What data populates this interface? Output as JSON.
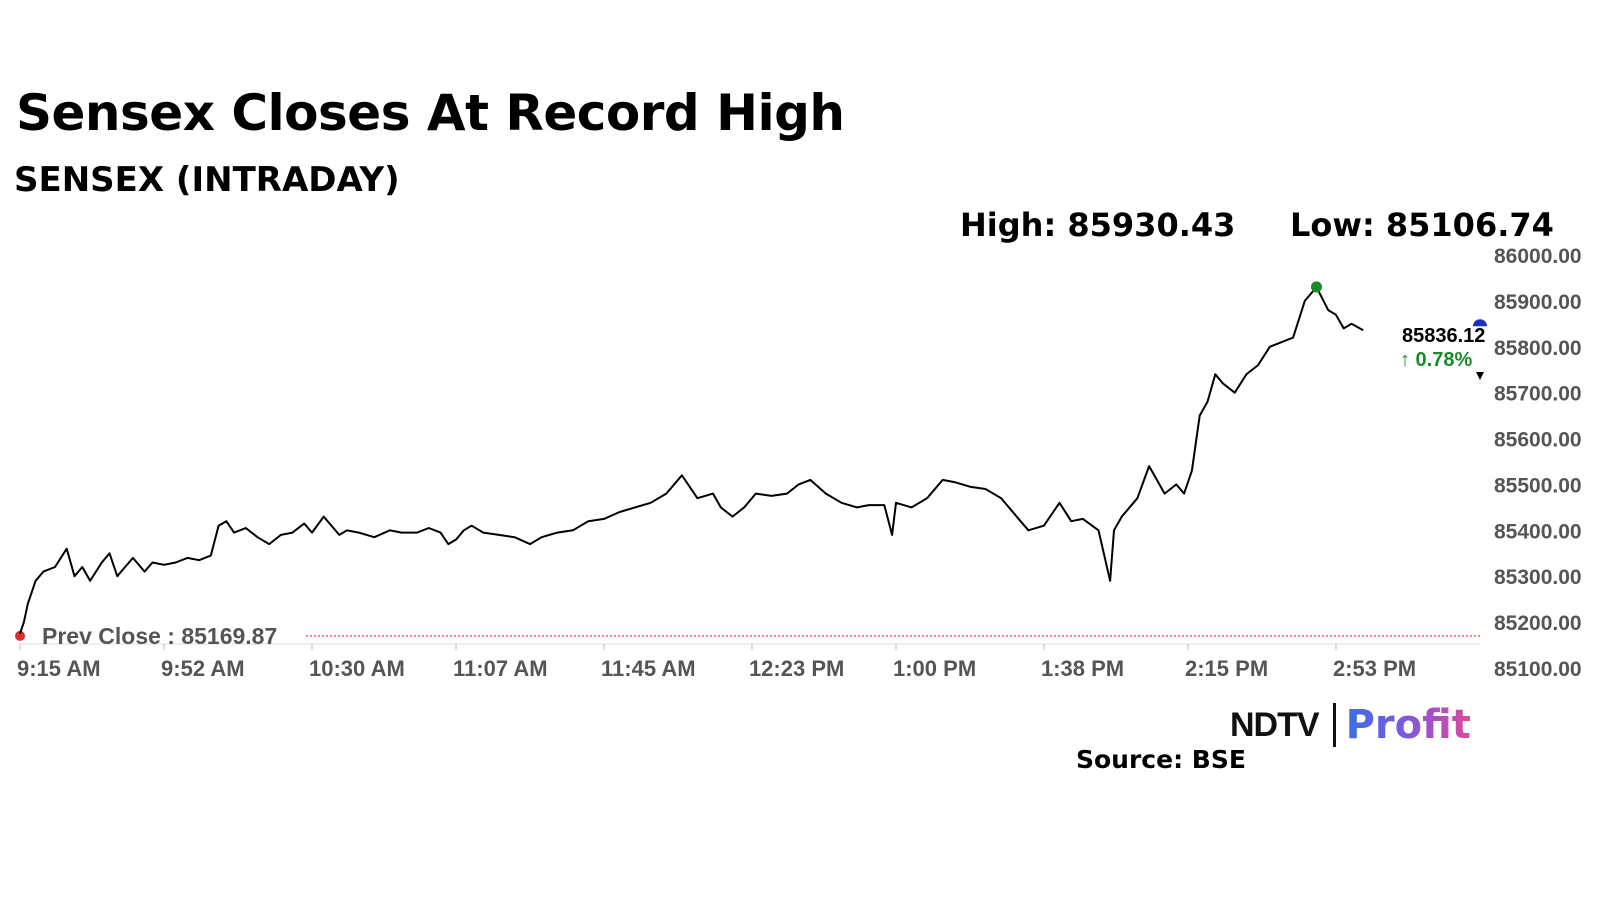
{
  "header": {
    "title": "Sensex Closes At Record High",
    "subtitle": "SENSEX (INTRADAY)"
  },
  "stats": {
    "high": "High: 85930.43",
    "low": "Low: 85106.74"
  },
  "last": {
    "value": "85836.12",
    "change": "↑ 0.78%"
  },
  "prev_close_label": "Prev Close : 85169.87",
  "footer": {
    "logo_ndtv": "NDTV",
    "logo_profit": "Profit",
    "source": "Source: BSE"
  },
  "colors": {
    "line": "#000000",
    "prev_close": "#d9302c",
    "high_marker": "#1a8a2a",
    "last_marker": "#1f2fbf",
    "change_up": "#1a8a2a",
    "axis": "#dddddd"
  },
  "chart_data": {
    "type": "line",
    "title": "Sensex Closes At Record High",
    "subtitle": "SENSEX (INTRADAY)",
    "xlabel": "",
    "ylabel": "",
    "ylim": [
      85100,
      86000
    ],
    "yticks": [
      86000,
      85900,
      85800,
      85700,
      85600,
      85500,
      85400,
      85300,
      85200,
      85100
    ],
    "ytick_labels": [
      "86000.00",
      "85900.00",
      "85800.00",
      "85700.00",
      "85600.00",
      "85500.00",
      "85400.00",
      "85300.00",
      "85200.00",
      "85100.00"
    ],
    "xticks": [
      "9:15 AM",
      "9:52 AM",
      "10:30 AM",
      "11:07 AM",
      "11:45 AM",
      "12:23 PM",
      "1:00 PM",
      "1:38 PM",
      "2:15 PM",
      "2:53 PM"
    ],
    "time_range": [
      "9:15 AM",
      "3:30 PM"
    ],
    "prev_close": 85169.87,
    "high": 85930.43,
    "low": 85106.74,
    "last": 85836.12,
    "change_pct": 0.78,
    "grid": false,
    "series": [
      {
        "x": [
          "9:15 AM",
          "9:16 AM",
          "9:17 AM",
          "9:19 AM",
          "9:21 AM",
          "9:24 AM",
          "9:27 AM",
          "9:29 AM",
          "9:31 AM",
          "9:33 AM",
          "9:36 AM",
          "9:38 AM",
          "9:40 AM",
          "9:42 AM",
          "9:44 AM",
          "9:47 AM",
          "9:49 AM",
          "9:52 AM",
          "9:55 AM",
          "9:58 AM",
          "10:01 AM",
          "10:04 AM",
          "10:06 AM",
          "10:08 AM",
          "10:10 AM",
          "10:13 AM",
          "10:16 AM",
          "10:19 AM",
          "10:22 AM",
          "10:25 AM",
          "10:28 AM",
          "10:30 AM",
          "10:33 AM",
          "10:37 AM",
          "10:39 AM",
          "10:42 AM",
          "10:46 AM",
          "10:50 AM",
          "10:53 AM",
          "10:57 AM",
          "11:00 AM",
          "11:03 AM",
          "11:05 AM",
          "11:07 AM",
          "11:09 AM",
          "11:11 AM",
          "11:14 AM",
          "11:18 AM",
          "11:22 AM",
          "11:26 AM",
          "11:29 AM",
          "11:33 AM",
          "11:37 AM",
          "11:41 AM",
          "11:45 AM",
          "11:49 AM",
          "11:53 AM",
          "11:57 AM",
          "12:01 PM",
          "12:05 PM",
          "12:09 PM",
          "12:13 PM",
          "12:15 PM",
          "12:18 PM",
          "12:21 PM",
          "12:24 PM",
          "12:28 PM",
          "12:32 PM",
          "12:35 PM",
          "12:38 PM",
          "12:42 PM",
          "12:46 PM",
          "12:50 PM",
          "12:53 PM",
          "12:57 PM",
          "12:59 PM",
          "1:00 PM",
          "1:04 PM",
          "1:08 PM",
          "1:12 PM",
          "1:15 PM",
          "1:19 PM",
          "1:23 PM",
          "1:27 PM",
          "1:31 PM",
          "1:34 PM",
          "1:38 PM",
          "1:42 PM",
          "1:45 PM",
          "1:48 PM",
          "1:52 PM",
          "1:55 PM",
          "1:56 PM",
          "1:58 PM",
          "2:02 PM",
          "2:05 PM",
          "2:07 PM",
          "2:09 PM",
          "2:12 PM",
          "2:14 PM",
          "2:16 PM",
          "2:18 PM",
          "2:20 PM",
          "2:22 PM",
          "2:24 PM",
          "2:27 PM",
          "2:30 PM",
          "2:33 PM",
          "2:36 PM",
          "2:39 PM",
          "2:42 PM",
          "2:45 PM",
          "2:48 PM",
          "2:51 PM",
          "2:53 PM",
          "2:55 PM",
          "2:57 PM",
          "3:00 PM"
        ],
        "values": [
          85175,
          85200,
          85240,
          85290,
          85310,
          85320,
          85360,
          85300,
          85320,
          85290,
          85330,
          85350,
          85300,
          85320,
          85340,
          85310,
          85330,
          85325,
          85330,
          85340,
          85335,
          85345,
          85410,
          85420,
          85395,
          85405,
          85385,
          85370,
          85390,
          85395,
          85415,
          85395,
          85430,
          85390,
          85400,
          85395,
          85385,
          85400,
          85395,
          85395,
          85405,
          85395,
          85370,
          85380,
          85400,
          85410,
          85395,
          85390,
          85385,
          85370,
          85385,
          85395,
          85400,
          85420,
          85425,
          85440,
          85450,
          85460,
          85480,
          85520,
          85470,
          85480,
          85450,
          85430,
          85450,
          85480,
          85475,
          85480,
          85500,
          85510,
          85480,
          85460,
          85450,
          85455,
          85455,
          85390,
          85460,
          85450,
          85470,
          85510,
          85505,
          85495,
          85490,
          85470,
          85430,
          85400,
          85410,
          85460,
          85420,
          85425,
          85400,
          85290,
          85400,
          85430,
          85470,
          85540,
          85510,
          85480,
          85500,
          85480,
          85530,
          85650,
          85680,
          85740,
          85720,
          85700,
          85740,
          85760,
          85800,
          85810,
          85820,
          85900,
          85930,
          85880,
          85870,
          85840,
          85850,
          85836
        ]
      }
    ]
  }
}
